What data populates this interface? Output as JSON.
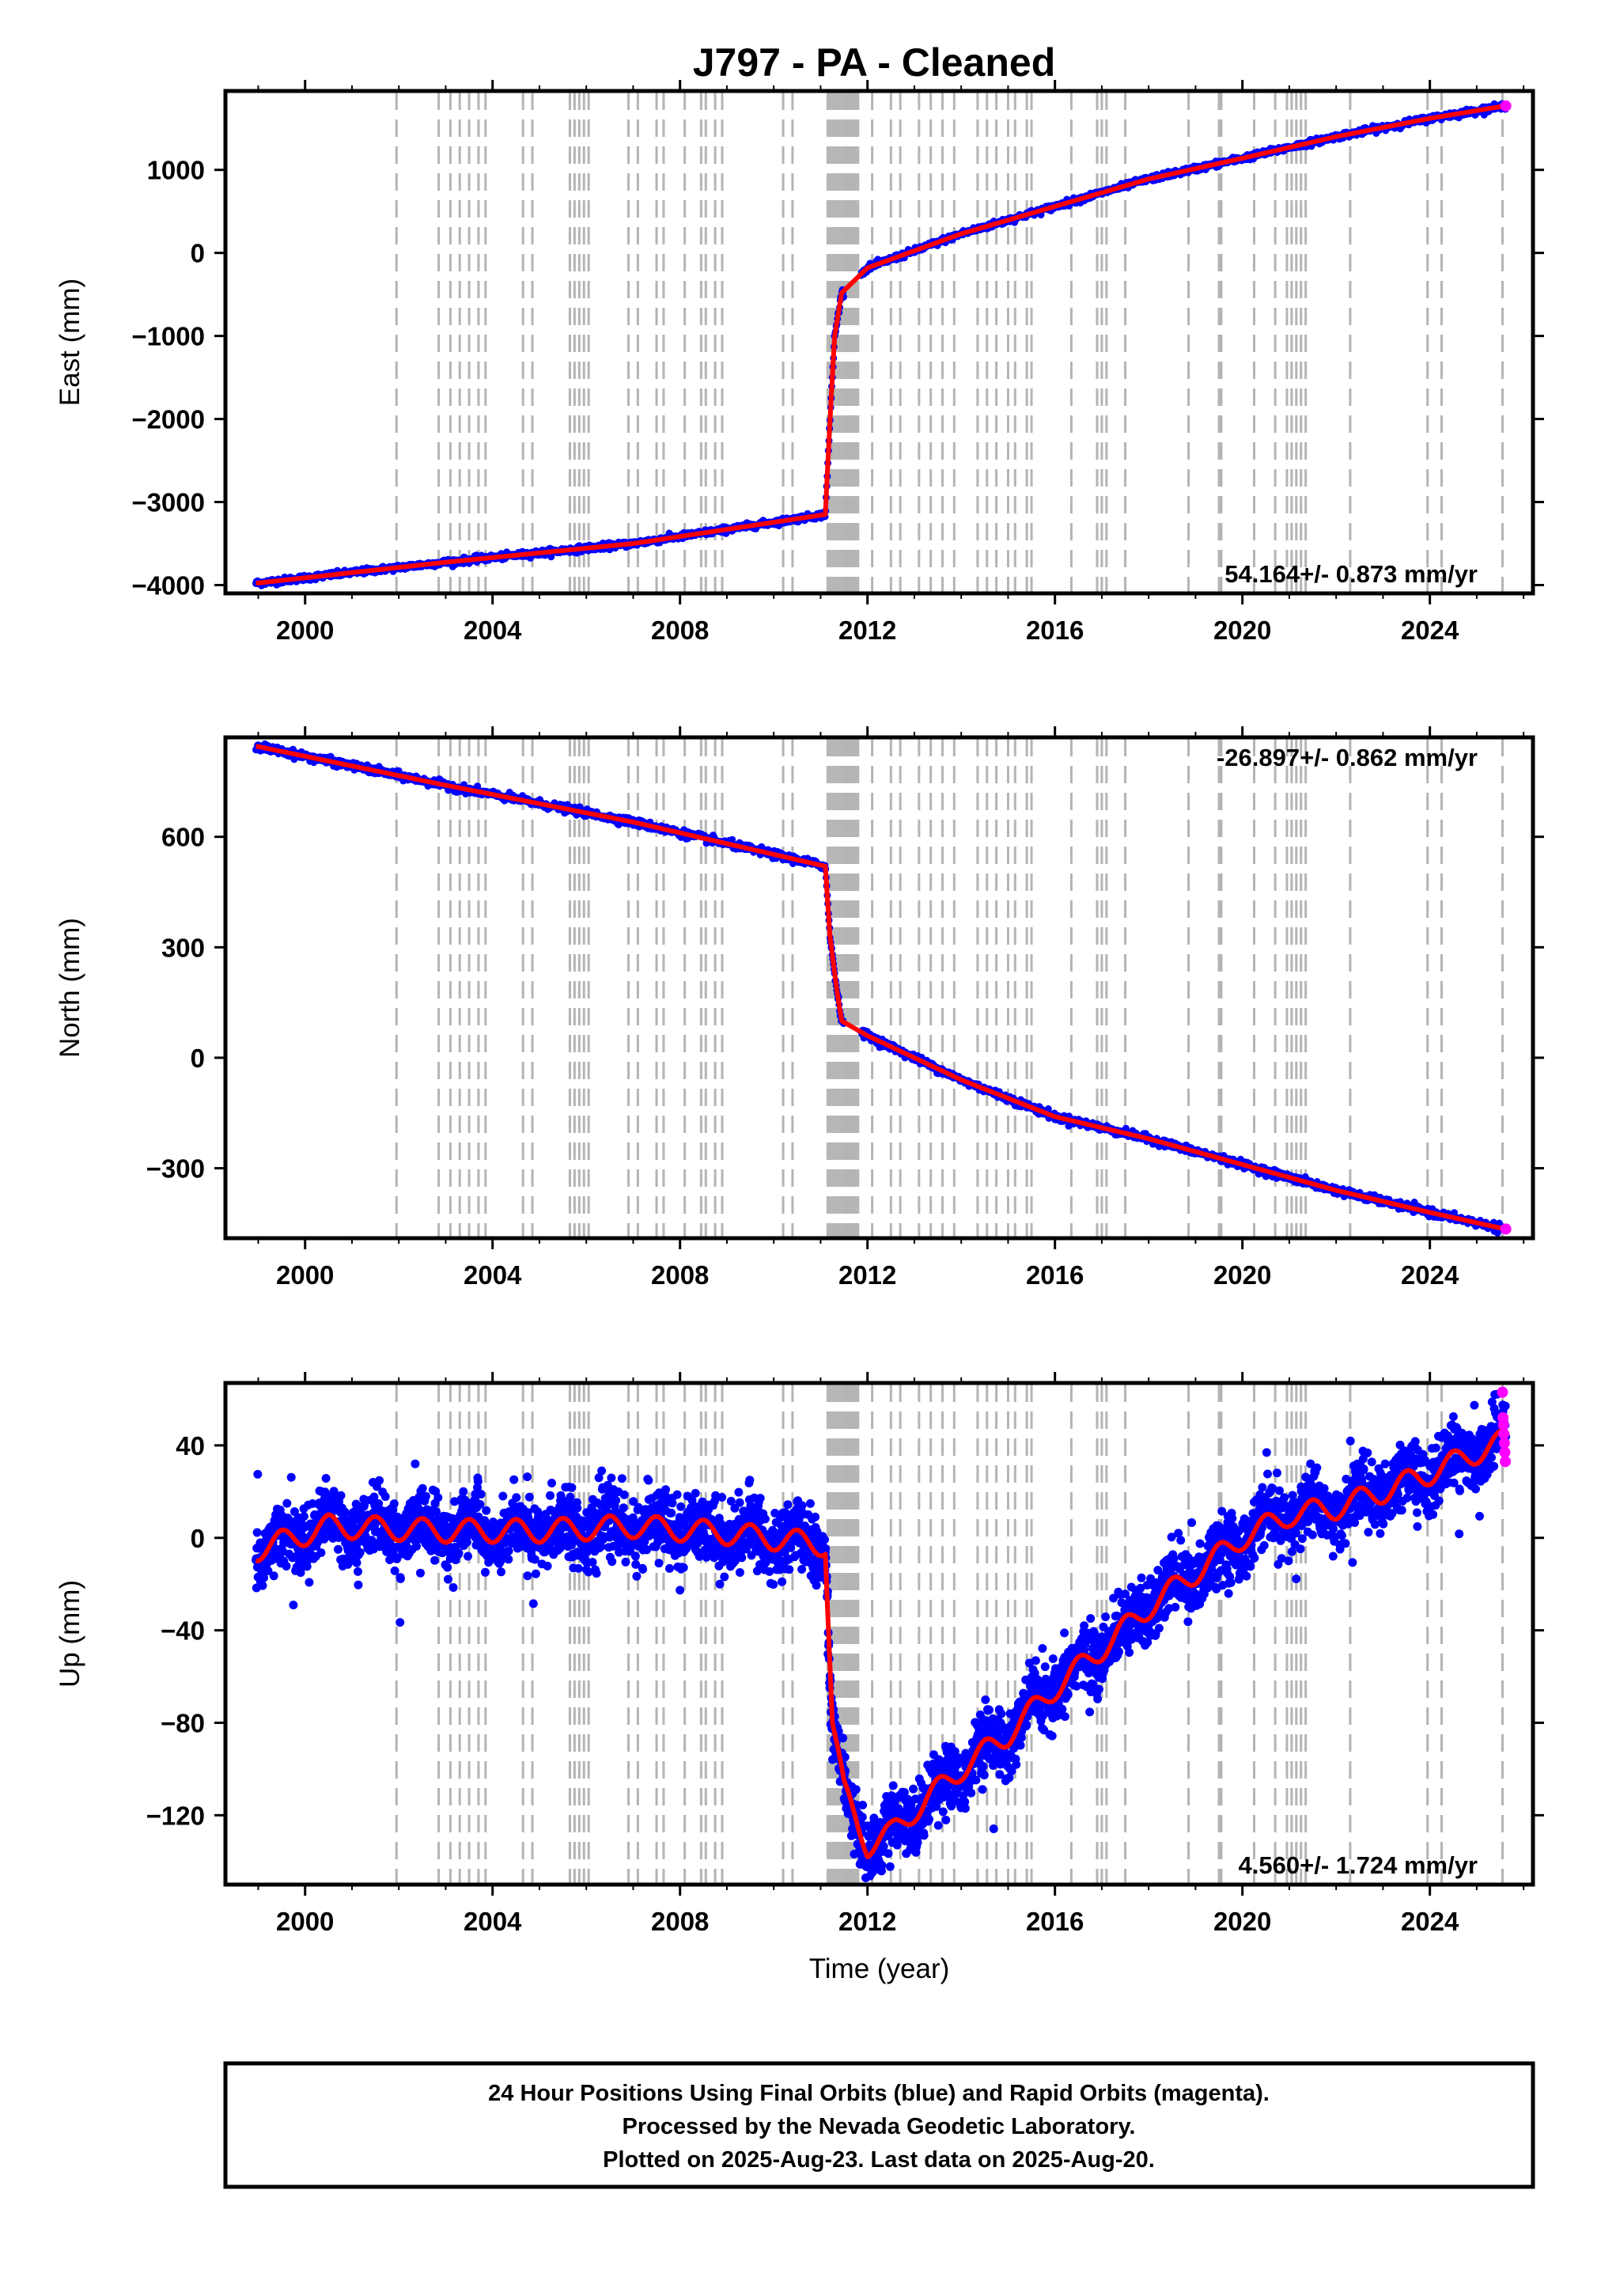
{
  "title": "J797  - PA - Cleaned",
  "colors": {
    "final": "#0000ff",
    "rapid": "#ff00ff",
    "model": "#ff0000",
    "event_line": "#b4b4b4",
    "frame": "#000000"
  },
  "chart_data": [
    {
      "type": "scatter",
      "id": "east",
      "ylabel": "East (mm)",
      "xlabel": "",
      "xlim": [
        1998.3,
        2026.2
      ],
      "ylim": [
        -4100,
        1950
      ],
      "xticks": [
        2000,
        2004,
        2008,
        2012,
        2016,
        2020,
        2024
      ],
      "yticks": [
        -4000,
        -3000,
        -2000,
        -1000,
        0,
        1000
      ],
      "ytick_labels": [
        "−4000",
        "−3000",
        "−2000",
        "−1000",
        "0",
        "1000"
      ],
      "rate_label": "54.164+/- 0.873 mm/yr",
      "rate_position": "bottom-right",
      "model_trend": [
        [
          1999.0,
          -3975
        ],
        [
          2003.0,
          -3725
        ],
        [
          2007.0,
          -3500
        ],
        [
          2011.1,
          -3150
        ],
        [
          2011.22,
          -1800
        ],
        [
          2011.3,
          -1000
        ],
        [
          2011.45,
          -480
        ],
        [
          2012.0,
          -180
        ],
        [
          2014.0,
          230
        ],
        [
          2016.0,
          560
        ],
        [
          2018.0,
          890
        ],
        [
          2020.0,
          1140
        ],
        [
          2022.0,
          1400
        ],
        [
          2024.0,
          1620
        ],
        [
          2025.6,
          1770
        ]
      ],
      "noise_mm": 18
    },
    {
      "type": "scatter",
      "id": "north",
      "ylabel": "North (mm)",
      "xlabel": "",
      "xlim": [
        1998.3,
        2026.2
      ],
      "ylim": [
        -490,
        870
      ],
      "xticks": [
        2000,
        2004,
        2008,
        2012,
        2016,
        2020,
        2024
      ],
      "yticks": [
        -300,
        0,
        300,
        600
      ],
      "ytick_labels": [
        "−300",
        "0",
        "300",
        "600"
      ],
      "rate_label": "-26.897+/- 0.862 mm/yr",
      "rate_position": "top-right",
      "model_trend": [
        [
          1999.0,
          845
        ],
        [
          2003.0,
          740
        ],
        [
          2007.0,
          640
        ],
        [
          2011.1,
          520
        ],
        [
          2011.2,
          330
        ],
        [
          2011.35,
          180
        ],
        [
          2011.45,
          100
        ],
        [
          2012.0,
          60
        ],
        [
          2014.0,
          -60
        ],
        [
          2016.0,
          -160
        ],
        [
          2018.0,
          -220
        ],
        [
          2020.0,
          -290
        ],
        [
          2022.0,
          -360
        ],
        [
          2024.0,
          -420
        ],
        [
          2025.6,
          -465
        ]
      ],
      "noise_mm": 5
    },
    {
      "type": "scatter",
      "id": "up",
      "ylabel": "Up (mm)",
      "xlabel": "Time (year)",
      "xlim": [
        1998.3,
        2026.2
      ],
      "ylim": [
        -150,
        67
      ],
      "xticks": [
        2000,
        2004,
        2008,
        2012,
        2016,
        2020,
        2024
      ],
      "yticks": [
        -120,
        -80,
        -40,
        0,
        40
      ],
      "ytick_labels": [
        "−120",
        "−80",
        "−40",
        "0",
        "40"
      ],
      "rate_label": "4.560+/- 1.724 mm/yr",
      "rate_position": "bottom-right",
      "model_trend": [
        [
          1999.0,
          -5
        ],
        [
          2000.5,
          5
        ],
        [
          2003.0,
          3
        ],
        [
          2005.0,
          3
        ],
        [
          2007.0,
          5
        ],
        [
          2009.0,
          2
        ],
        [
          2011.1,
          -3
        ],
        [
          2011.25,
          -80
        ],
        [
          2011.5,
          -110
        ],
        [
          2012.0,
          -133
        ],
        [
          2012.5,
          -128
        ],
        [
          2013.0,
          -118
        ],
        [
          2014.0,
          -100
        ],
        [
          2015.0,
          -85
        ],
        [
          2016.0,
          -65
        ],
        [
          2017.0,
          -48
        ],
        [
          2018.0,
          -30
        ],
        [
          2019.0,
          -15
        ],
        [
          2020.0,
          0
        ],
        [
          2021.0,
          10
        ],
        [
          2022.0,
          13
        ],
        [
          2023.0,
          20
        ],
        [
          2024.0,
          28
        ],
        [
          2025.0,
          37
        ],
        [
          2025.6,
          42
        ]
      ],
      "seasonal_mm": 5,
      "noise_mm": 7,
      "rapid_points": [
        [
          2025.55,
          63
        ],
        [
          2025.56,
          52
        ],
        [
          2025.57,
          49
        ],
        [
          2025.58,
          45
        ],
        [
          2025.59,
          41
        ],
        [
          2025.6,
          37
        ],
        [
          2025.61,
          33
        ]
      ]
    }
  ],
  "event_years": [
    2001.95,
    2002.85,
    2003.1,
    2003.3,
    2003.5,
    2003.7,
    2003.85,
    2004.65,
    2004.85,
    2005.65,
    2005.75,
    2005.85,
    2005.95,
    2006.05,
    2006.9,
    2007.1,
    2007.5,
    2007.65,
    2008.1,
    2008.45,
    2008.55,
    2008.75,
    2008.9,
    2010.2,
    2010.4,
    2011.15,
    2011.2,
    2011.25,
    2011.3,
    2011.35,
    2011.4,
    2011.45,
    2011.5,
    2011.55,
    2011.6,
    2011.65,
    2011.7,
    2011.75,
    2011.8,
    2012.1,
    2012.5,
    2012.7,
    2013.1,
    2013.35,
    2013.6,
    2013.85,
    2014.35,
    2014.55,
    2014.75,
    2015.0,
    2015.15,
    2015.4,
    2015.5,
    2016.35,
    2016.9,
    2017.0,
    2017.1,
    2017.5,
    2018.85,
    2019.5,
    2019.55,
    2020.25,
    2020.7,
    2020.95,
    2021.05,
    2021.15,
    2021.25,
    2021.35,
    2022.3,
    2023.95,
    2024.25,
    2025.55
  ],
  "xaxis_label": "Time (year)",
  "footer": {
    "line1": "24 Hour Positions Using Final Orbits (blue) and Rapid Orbits (magenta).",
    "line2": "Processed by the Nevada Geodetic Laboratory.",
    "line3": "Plotted on 2025-Aug-23. Last data on 2025-Aug-20."
  }
}
